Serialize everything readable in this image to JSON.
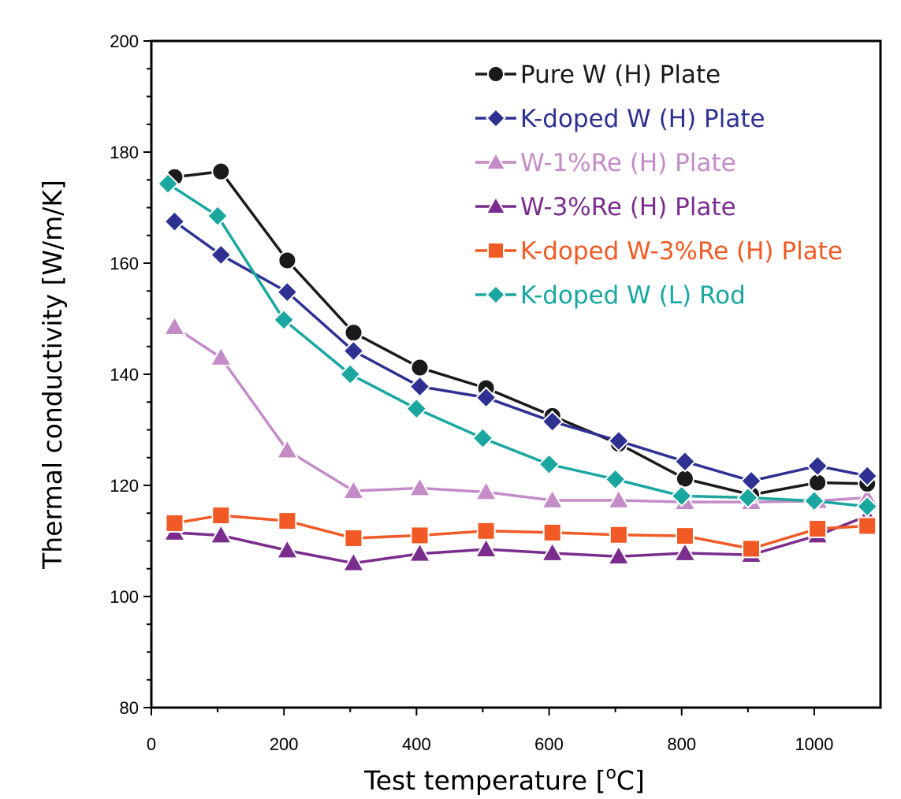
{
  "chart_data": {
    "type": "line",
    "xlabel": "Test temperature [",
    "xlabel_sup": "o",
    "xlabel_unit": "C]",
    "ylabel": "Thermal conductivity [W/m/K]",
    "xlim": [
      0,
      1100
    ],
    "ylim": [
      80,
      200
    ],
    "xticks": [
      0,
      200,
      400,
      600,
      800,
      1000
    ],
    "yticks": [
      80,
      100,
      120,
      140,
      160,
      180,
      200
    ],
    "grid": false,
    "legend_position": "top-right",
    "series": [
      {
        "name": "Pure W (H) Plate",
        "color": "#1a1a1a",
        "marker": "circle",
        "x": [
          35,
          105,
          205,
          305,
          405,
          505,
          605,
          705,
          805,
          905,
          1005,
          1080
        ],
        "y": [
          175.5,
          176.5,
          160.5,
          147.5,
          141.2,
          137.5,
          132.5,
          127.5,
          121.2,
          118.3,
          120.5,
          120.3
        ]
      },
      {
        "name": "K-doped W (H) Plate",
        "color": "#2e3192",
        "marker": "diamond",
        "x": [
          35,
          105,
          205,
          305,
          405,
          505,
          605,
          705,
          805,
          905,
          1005,
          1080
        ],
        "y": [
          167.5,
          161.5,
          154.8,
          144.2,
          137.8,
          135.8,
          131.5,
          128.0,
          124.3,
          120.8,
          123.5,
          121.7
        ]
      },
      {
        "name": "W-1%Re (H) Plate",
        "color": "#c38cc7",
        "marker": "triangle",
        "x": [
          35,
          105,
          205,
          305,
          405,
          505,
          605,
          705,
          805,
          905,
          1005,
          1080
        ],
        "y": [
          148.5,
          143.0,
          126.3,
          119.0,
          119.5,
          118.8,
          117.3,
          117.3,
          117.0,
          117.0,
          117.2,
          117.8
        ]
      },
      {
        "name": "W-3%Re (H) Plate",
        "color": "#7b2d8e",
        "marker": "triangle",
        "x": [
          35,
          105,
          205,
          305,
          405,
          505,
          605,
          705,
          805,
          905,
          1005,
          1080
        ],
        "y": [
          111.5,
          111.0,
          108.3,
          106.0,
          107.7,
          108.5,
          107.8,
          107.2,
          107.8,
          107.5,
          111.0,
          114.5
        ]
      },
      {
        "name": "K-doped W-3%Re (H) Plate",
        "color": "#f15a24",
        "marker": "square",
        "x": [
          35,
          105,
          205,
          305,
          405,
          505,
          605,
          705,
          805,
          905,
          1005,
          1080
        ],
        "y": [
          113.2,
          114.6,
          113.6,
          110.5,
          111.0,
          111.8,
          111.5,
          111.1,
          110.9,
          108.6,
          112.2,
          112.7
        ]
      },
      {
        "name": "K-doped W (L) Rod",
        "color": "#19a7a0",
        "marker": "diamond",
        "x": [
          25,
          100,
          200,
          300,
          400,
          500,
          600,
          700,
          800,
          900,
          1000,
          1080
        ],
        "y": [
          174.3,
          168.5,
          149.8,
          140.0,
          133.8,
          128.5,
          123.8,
          121.1,
          118.1,
          117.8,
          117.2,
          116.2
        ]
      }
    ]
  }
}
